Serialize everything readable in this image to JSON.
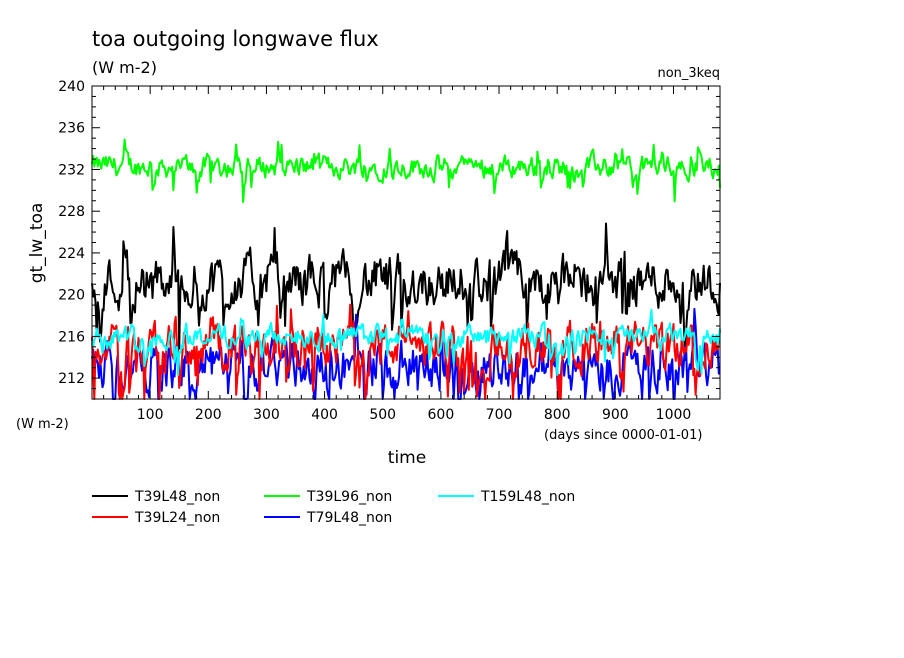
{
  "chart_data": {
    "type": "line",
    "title": "toa outgoing longwave flux",
    "subtitle": "(W m-2)",
    "run_label": "non_3keq",
    "ylabel": "gt_lw_toa",
    "yunits": "(W m-2)",
    "xlabel": "time",
    "xunits": "(days since 0000-01-01)",
    "xlim": [
      0,
      1080
    ],
    "ylim": [
      210,
      240
    ],
    "xticks": [
      100,
      200,
      300,
      400,
      500,
      600,
      700,
      800,
      900,
      1000
    ],
    "yticks": [
      212,
      216,
      220,
      224,
      228,
      232,
      236,
      240
    ],
    "grid": false,
    "legend_position": "bottom",
    "sample_step_days": 2,
    "series": [
      {
        "name": "T39L48_non",
        "color": "#000000",
        "mean": 221.3,
        "amplitude": 2.0
      },
      {
        "name": "T39L96_non",
        "color": "#00ff00",
        "mean": 232.3,
        "amplitude": 0.9
      },
      {
        "name": "T159L48_non",
        "color": "#00ffff",
        "mean": 216.0,
        "amplitude": 0.9
      },
      {
        "name": "T39L24_non",
        "color": "#ff0000",
        "mean": 215.2,
        "amplitude": 1.8
      },
      {
        "name": "T79L48_non",
        "color": "#0000ff",
        "mean": 213.2,
        "amplitude": 1.9
      }
    ]
  }
}
